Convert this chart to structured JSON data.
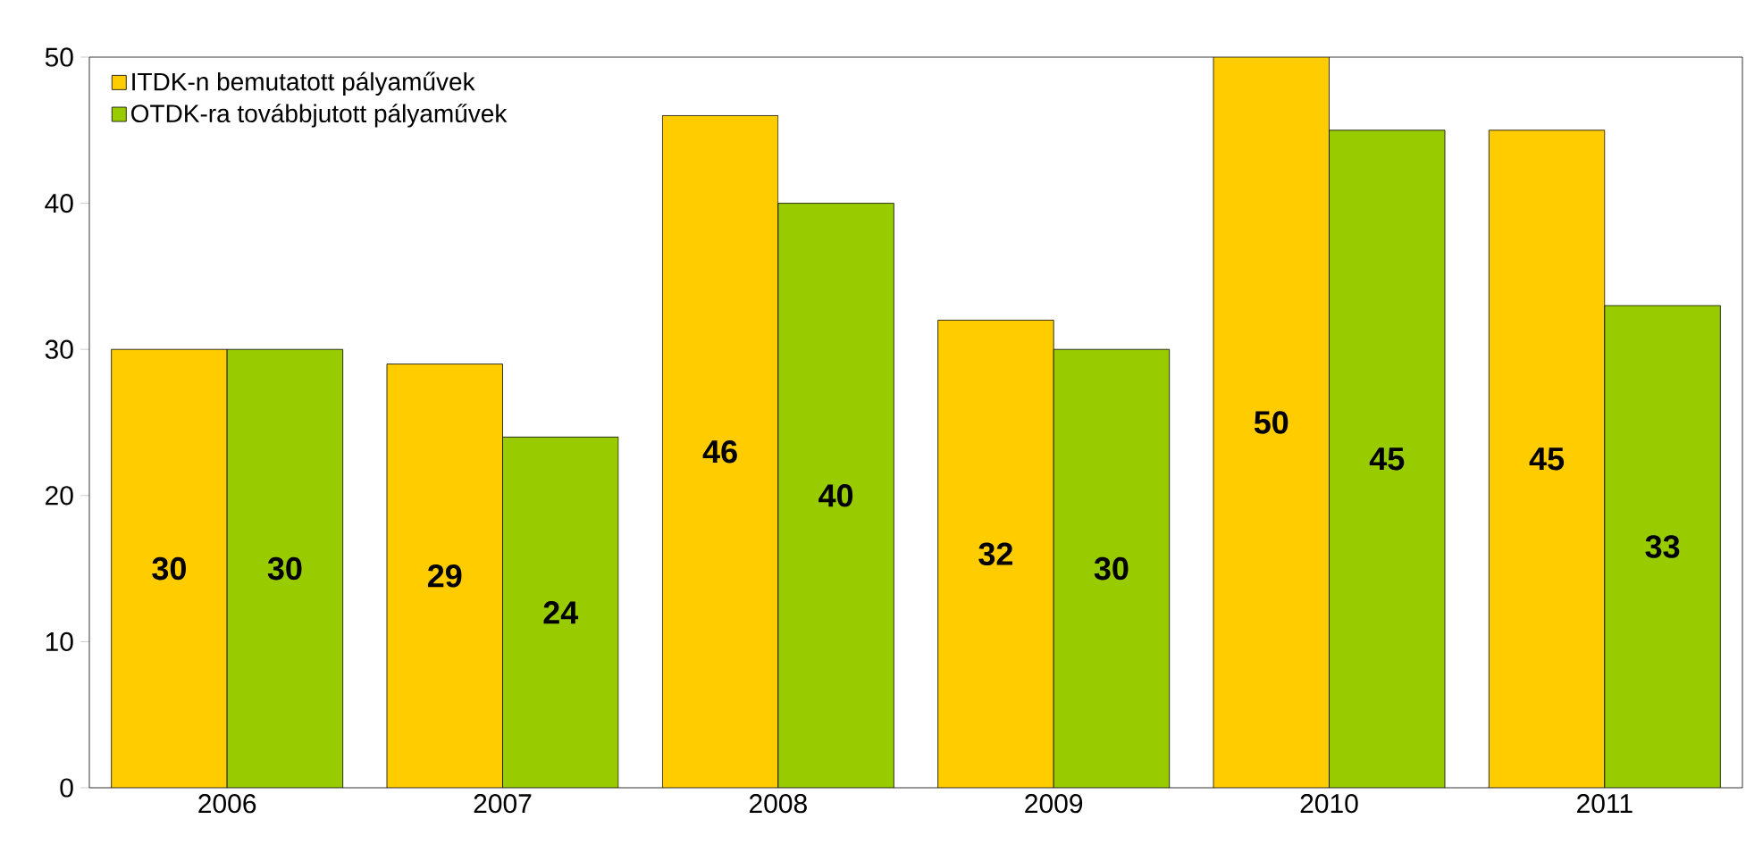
{
  "chart_data": {
    "type": "bar",
    "categories": [
      "2006",
      "2007",
      "2008",
      "2009",
      "2010",
      "2011"
    ],
    "series": [
      {
        "name": "ITDK-n bemutatott pályaművek",
        "color": "#ffcc00",
        "values": [
          30,
          29,
          46,
          32,
          50,
          45
        ]
      },
      {
        "name": "OTDK-ra továbbjutott pályaművek",
        "color": "#99cc00",
        "values": [
          30,
          24,
          40,
          30,
          45,
          33
        ]
      }
    ],
    "ylim": [
      0,
      50
    ],
    "yticks": [
      0,
      10,
      20,
      30,
      40,
      50
    ],
    "data_labels": true,
    "legend": "top left",
    "grid": false
  }
}
